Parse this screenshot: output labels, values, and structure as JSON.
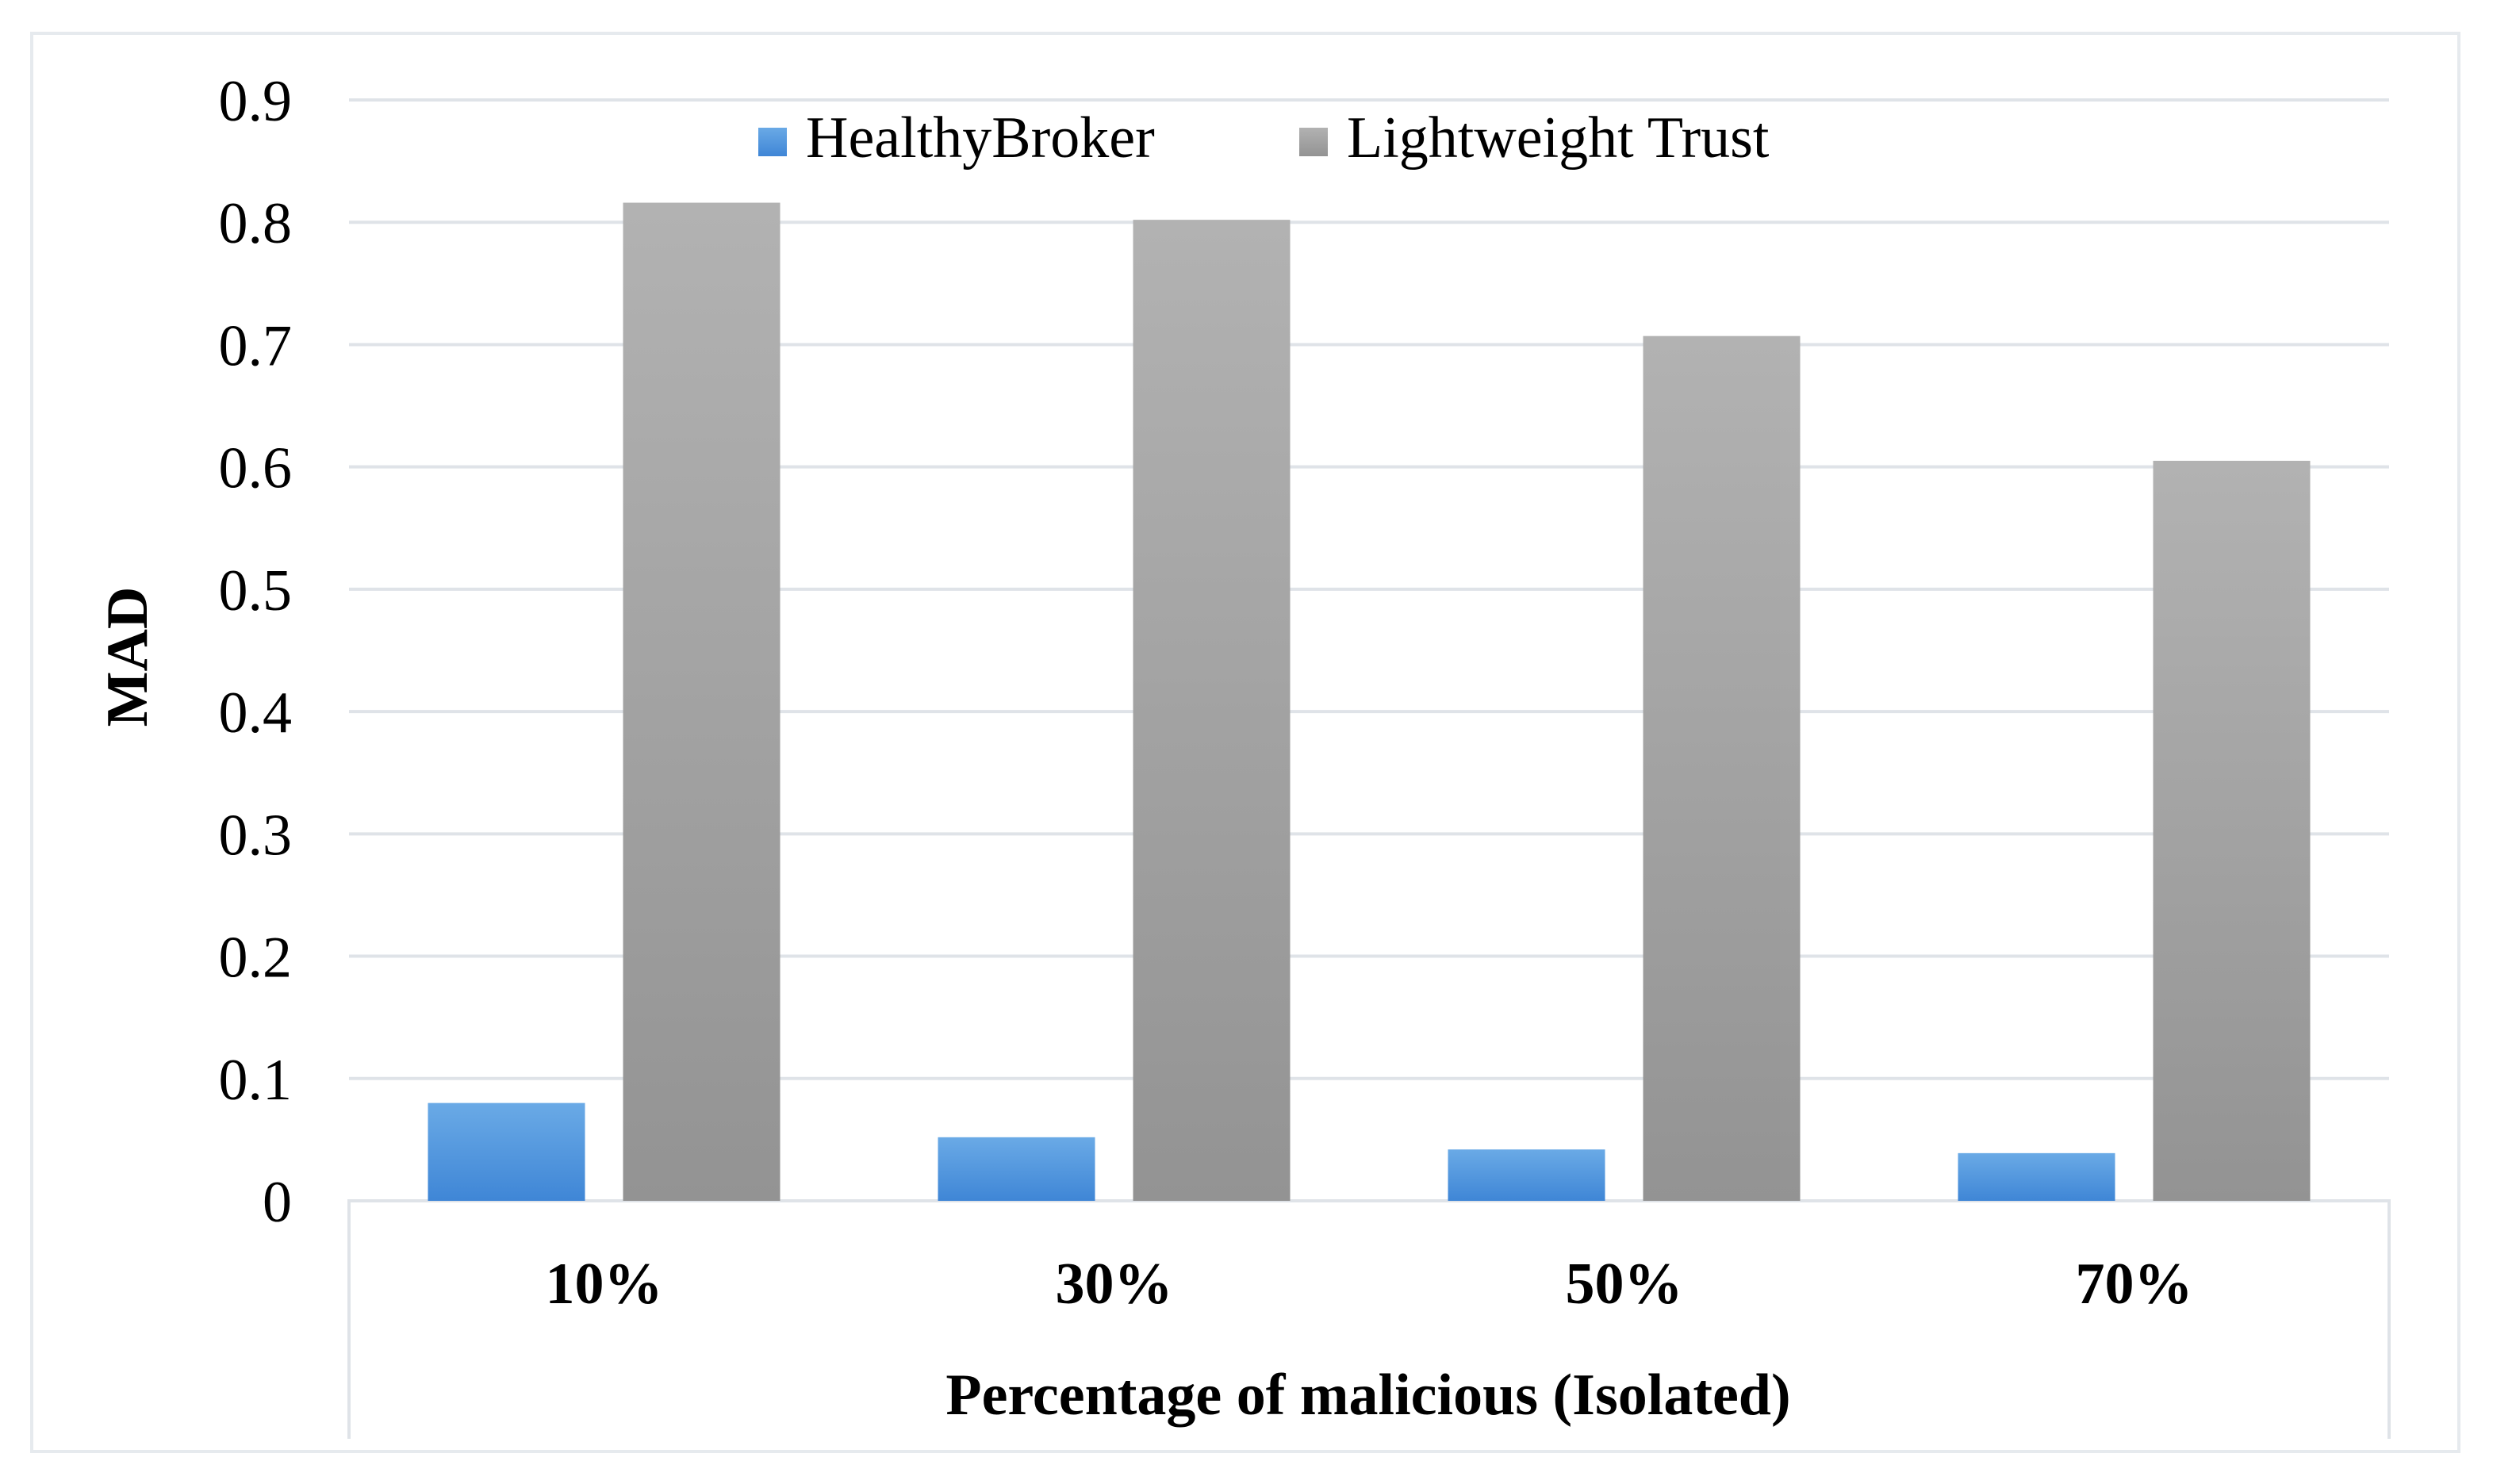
{
  "chart_data": {
    "type": "bar",
    "categories": [
      "10%",
      "30%",
      "50%",
      "70%"
    ],
    "series": [
      {
        "name": "HealthyBroker",
        "values": [
          0.08,
          0.052,
          0.042,
          0.039
        ],
        "color": "#4a90d9"
      },
      {
        "name": "Lightweight Trust",
        "values": [
          0.816,
          0.802,
          0.707,
          0.605
        ],
        "color": "#a6a6a6"
      }
    ],
    "title": "",
    "xlabel": "Percentage of malicious (Isolated)",
    "ylabel": "MAD",
    "ylim": [
      0,
      0.9
    ],
    "yticks": [
      "0",
      "0.1",
      "0.2",
      "0.3",
      "0.4",
      "0.5",
      "0.6",
      "0.7",
      "0.8",
      "0.9"
    ],
    "grid": true,
    "legend_position": "top-center"
  }
}
